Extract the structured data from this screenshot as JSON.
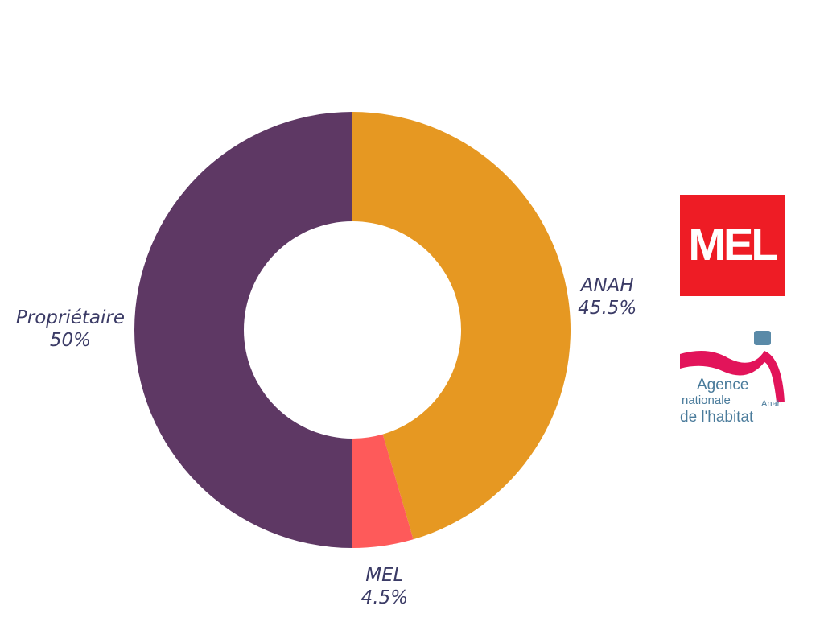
{
  "chart_data": {
    "type": "donut",
    "categories": [
      "ANAH",
      "MEL",
      "Propriétaire"
    ],
    "values": [
      45.5,
      4.5,
      50
    ],
    "value_labels": [
      "45.5%",
      "4.5%",
      "50%"
    ],
    "colors": [
      "#e69822",
      "#fe5a5a",
      "#5e3864"
    ]
  },
  "logos": {
    "mel": "MEL",
    "anah": {
      "lines": [
        "Agence",
        "nationale",
        "de l'habitat"
      ],
      "short": "Anah"
    }
  }
}
